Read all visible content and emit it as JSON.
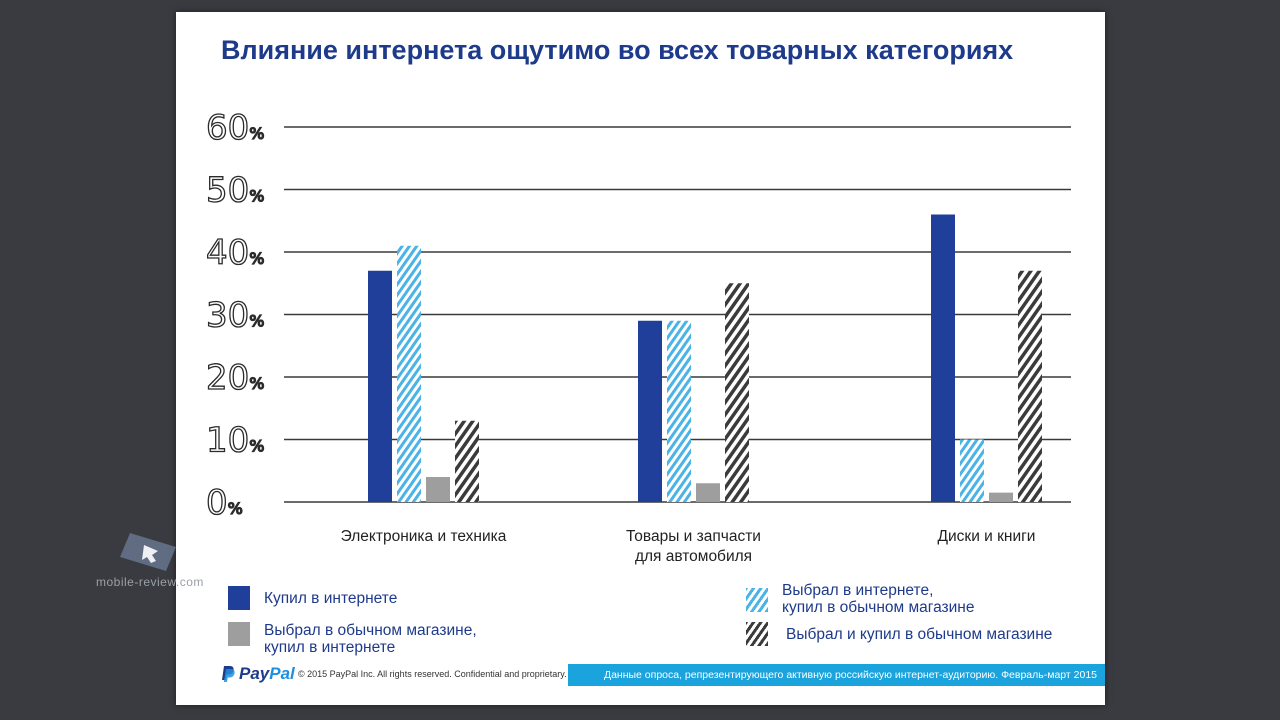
{
  "slide": {
    "title": "Влияние интернета ощутимо во всех товарных категориях"
  },
  "chart_data": {
    "type": "bar",
    "categories": [
      [
        "Электроника и техника"
      ],
      [
        "Товары и запчасти",
        "для автомобиля"
      ],
      [
        "Диски и книги"
      ]
    ],
    "yticks": [
      "0%",
      "10%",
      "20%",
      "30%",
      "40%",
      "50%",
      "60%"
    ],
    "ylim": [
      0,
      60
    ],
    "series": [
      {
        "name": "Купил в интернете",
        "values": [
          37,
          29,
          46
        ]
      },
      {
        "name": "Выбрал в интернете, купил в обычном магазине",
        "values": [
          41,
          29,
          10
        ]
      },
      {
        "name": "Выбрал в обычном магазине, купил в интернете",
        "values": [
          4,
          3,
          1.5
        ]
      },
      {
        "name": "Выбрал и купил в обычном магазине",
        "values": [
          13,
          35,
          37
        ]
      }
    ],
    "colors": [
      "#1f3f9a",
      "#4bb3e6",
      "#9e9e9e",
      "#3b3b3b"
    ],
    "legend_placement": "bottom",
    "grid": true
  },
  "legend": {
    "online": [
      "Купил в интернете"
    ],
    "ropo": [
      "Выбрал в интернете,",
      "купил в обычном магазине"
    ],
    "showroom": [
      "Выбрал в обычном магазине,",
      "купил в интернете"
    ],
    "offline": [
      "Выбрал и купил в обычном магазине"
    ]
  },
  "footer": {
    "logo_text_1": "Pay",
    "logo_text_2": "Pal",
    "copyright": "© 2015 PayPal Inc. All rights reserved. Confidential and proprietary.",
    "source": "Данные опроса, репрезентирующего активную российскую интернет-аудиторию. Февраль-март 2015"
  },
  "watermark": {
    "text": "mobile-review.com"
  }
}
